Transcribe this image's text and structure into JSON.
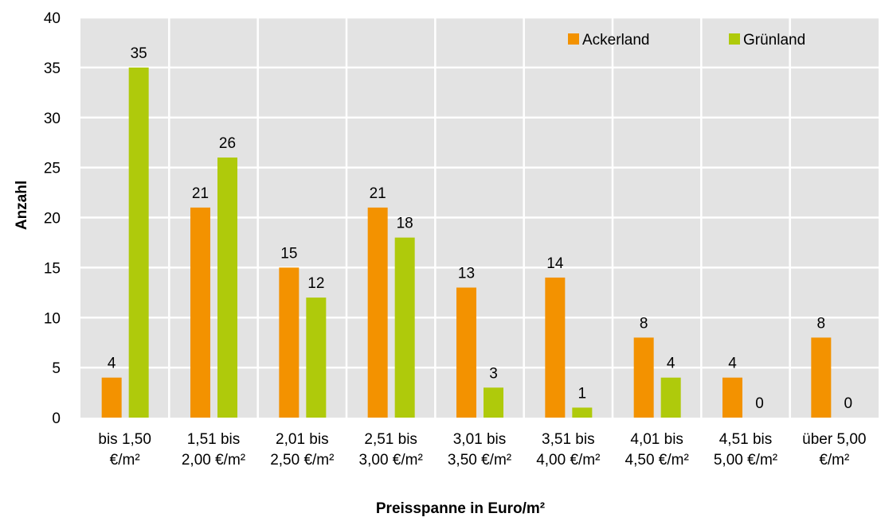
{
  "chart_data": {
    "type": "bar",
    "title": "",
    "xlabel": "Preisspanne in Euro/m²",
    "ylabel": "Anzahl",
    "ylim": [
      0,
      40
    ],
    "yticks": [
      0,
      5,
      10,
      15,
      20,
      25,
      30,
      35,
      40
    ],
    "grid": true,
    "legend_position": "top-right",
    "categories": [
      [
        "bis 1,50",
        "€/m²"
      ],
      [
        "1,51 bis",
        "2,00 €/m²"
      ],
      [
        "2,01 bis",
        "2,50 €/m²"
      ],
      [
        "2,51 bis",
        "3,00 €/m²"
      ],
      [
        "3,01 bis",
        "3,50 €/m²"
      ],
      [
        "3,51 bis",
        "4,00 €/m²"
      ],
      [
        "4,01 bis",
        "4,50 €/m²"
      ],
      [
        "4,51 bis",
        "5,00 €/m²"
      ],
      [
        "über 5,00",
        "€/m²"
      ]
    ],
    "series": [
      {
        "name": "Ackerland",
        "color": "#F39200",
        "values": [
          4,
          21,
          15,
          21,
          13,
          14,
          8,
          4,
          8
        ]
      },
      {
        "name": "Grünland",
        "color": "#AFCA0B",
        "values": [
          35,
          26,
          12,
          18,
          3,
          1,
          4,
          0,
          0
        ]
      }
    ],
    "colors": {
      "plot_background": "#E3E3E3",
      "gridline": "#FFFFFF"
    }
  }
}
